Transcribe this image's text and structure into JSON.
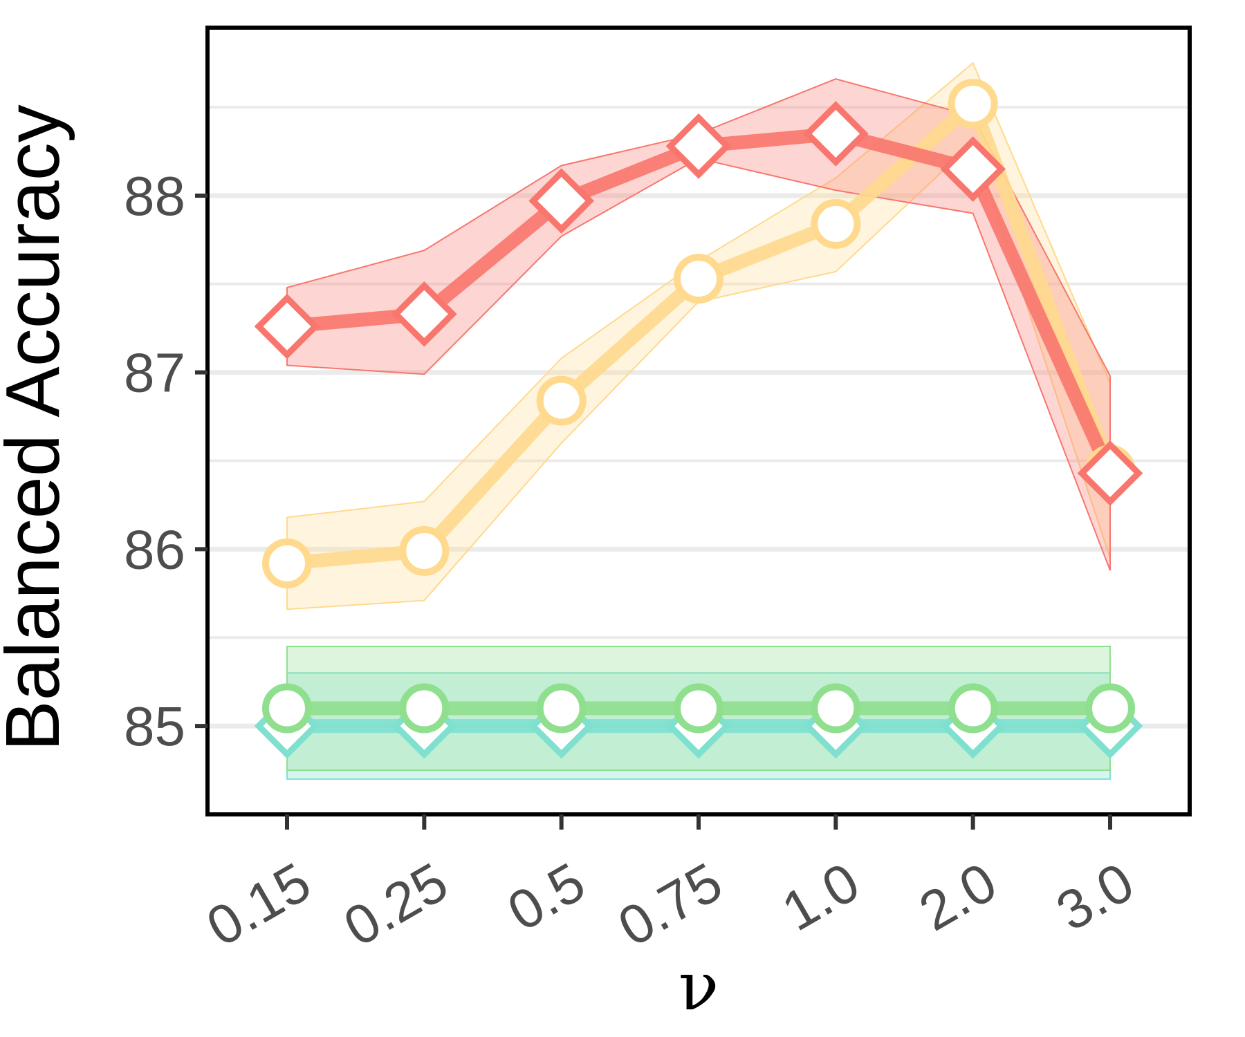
{
  "chart_data": {
    "type": "line",
    "xlabel": "ν",
    "ylabel": "Balanced Accuracy",
    "categories": [
      "0.15",
      "0.25",
      "0.5",
      "0.75",
      "1.0",
      "2.0",
      "3.0"
    ],
    "ylim": [
      84.5,
      88.95
    ],
    "yticks": [
      85,
      86,
      87,
      88
    ],
    "grid": "horizontal major and minor lines",
    "legend": "none",
    "series": [
      {
        "marker": "diamond",
        "color": "#f8766d",
        "values": [
          87.26,
          87.33,
          87.97,
          88.28,
          88.35,
          88.15,
          86.43
        ],
        "upper": [
          87.48,
          87.69,
          88.17,
          88.35,
          88.66,
          88.45,
          86.98
        ],
        "lower": [
          87.04,
          86.99,
          87.77,
          88.21,
          88.03,
          87.9,
          85.88
        ]
      },
      {
        "marker": "circle",
        "color": "#ffd98e",
        "values": [
          85.92,
          85.99,
          86.84,
          87.53,
          87.84,
          88.52,
          86.45
        ],
        "upper": [
          86.18,
          86.27,
          87.08,
          87.63,
          88.1,
          88.75,
          86.94
        ],
        "lower": [
          85.66,
          85.71,
          86.6,
          87.4,
          87.57,
          88.3,
          85.95
        ]
      },
      {
        "marker": "circle",
        "color": "#8fdf8f",
        "values": [
          85.1,
          85.1,
          85.1,
          85.1,
          85.1,
          85.1,
          85.1
        ],
        "upper": [
          85.45,
          85.45,
          85.45,
          85.45,
          85.45,
          85.45,
          85.45
        ],
        "lower": [
          84.75,
          84.75,
          84.75,
          84.75,
          84.75,
          84.75,
          84.75
        ]
      },
      {
        "marker": "diamond",
        "color": "#7fe0cf",
        "values": [
          85.0,
          85.0,
          85.0,
          85.0,
          85.0,
          85.0,
          85.0
        ],
        "upper": [
          85.3,
          85.3,
          85.3,
          85.3,
          85.3,
          85.3,
          85.3
        ],
        "lower": [
          84.7,
          84.7,
          84.7,
          84.7,
          84.7,
          84.7,
          84.7
        ]
      }
    ]
  }
}
